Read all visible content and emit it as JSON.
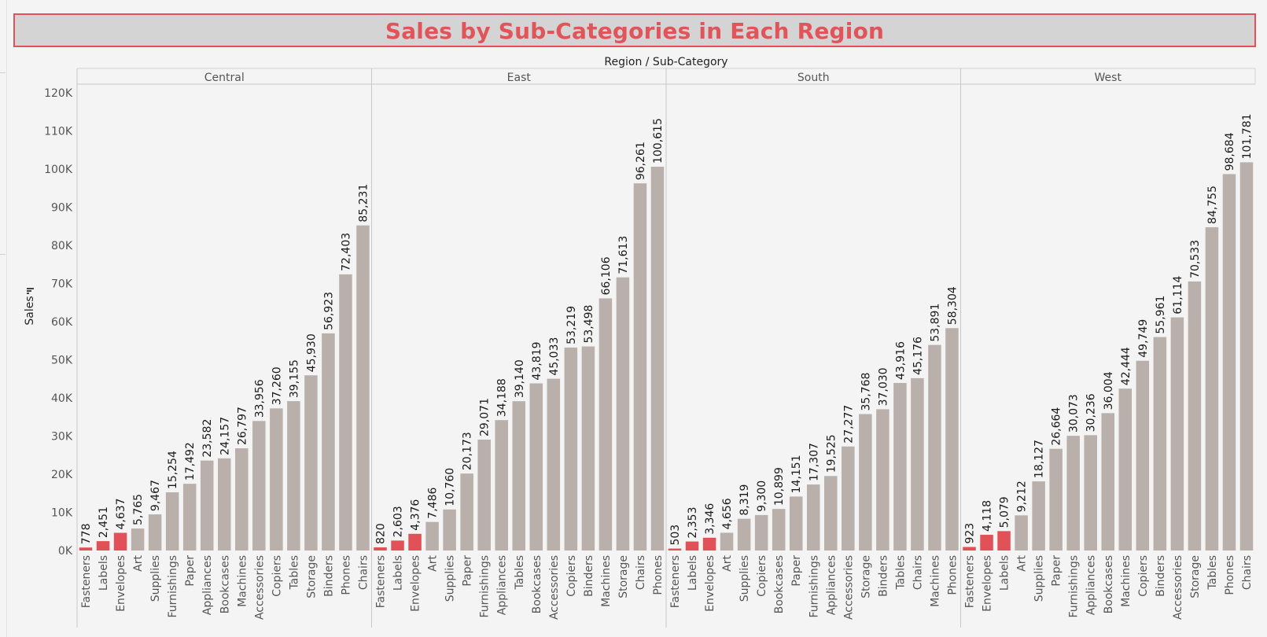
{
  "title": "Sales by Sub-Categories in Each Region",
  "colors": {
    "title": "#e0545a",
    "title_border": "#e05257",
    "title_bg": "#d4d4d4",
    "bar": "#bab0ab",
    "highlight": "#e05257",
    "background": "#f4f4f4"
  },
  "chart_data": {
    "type": "bar",
    "column_header": "Region / Sub-Category",
    "ylabel": "Sales",
    "ylabel_sort_icon": "sort-descending-icon",
    "ylim": [
      0,
      120000
    ],
    "y_ticks": [
      "0K",
      "10K",
      "20K",
      "30K",
      "40K",
      "50K",
      "60K",
      "70K",
      "80K",
      "90K",
      "100K",
      "110K",
      "120K"
    ],
    "grid": false,
    "highlight_rule": "bottom three sub-categories per region",
    "regions": [
      {
        "name": "Central",
        "categories": [
          "Fasteners",
          "Labels",
          "Envelopes",
          "Art",
          "Supplies",
          "Furnishings",
          "Paper",
          "Appliances",
          "Bookcases",
          "Machines",
          "Accessories",
          "Copiers",
          "Tables",
          "Storage",
          "Binders",
          "Phones",
          "Chairs"
        ],
        "values": [
          778,
          2451,
          4637,
          5765,
          9467,
          15254,
          17492,
          23582,
          24157,
          26797,
          33956,
          37260,
          39155,
          45930,
          56923,
          72403,
          85231
        ],
        "labels": [
          "778",
          "2,451",
          "4,637",
          "5,765",
          "9,467",
          "15,254",
          "17,492",
          "23,582",
          "24,157",
          "26,797",
          "33,956",
          "37,260",
          "39,155",
          "45,930",
          "56,923",
          "72,403",
          "85,231"
        ],
        "highlighted": [
          true,
          true,
          true,
          false,
          false,
          false,
          false,
          false,
          false,
          false,
          false,
          false,
          false,
          false,
          false,
          false,
          false
        ]
      },
      {
        "name": "East",
        "categories": [
          "Fasteners",
          "Labels",
          "Envelopes",
          "Art",
          "Supplies",
          "Paper",
          "Furnishings",
          "Appliances",
          "Tables",
          "Bookcases",
          "Accessories",
          "Copiers",
          "Binders",
          "Machines",
          "Storage",
          "Chairs",
          "Phones"
        ],
        "values": [
          820,
          2603,
          4376,
          7486,
          10760,
          20173,
          29071,
          34188,
          39140,
          43819,
          45033,
          53219,
          53498,
          66106,
          71613,
          96261,
          100615
        ],
        "labels": [
          "820",
          "2,603",
          "4,376",
          "7,486",
          "10,760",
          "20,173",
          "29,071",
          "34,188",
          "39,140",
          "43,819",
          "45,033",
          "53,219",
          "53,498",
          "66,106",
          "71,613",
          "96,261",
          "100,615"
        ],
        "highlighted": [
          true,
          true,
          true,
          false,
          false,
          false,
          false,
          false,
          false,
          false,
          false,
          false,
          false,
          false,
          false,
          false,
          false
        ]
      },
      {
        "name": "South",
        "categories": [
          "Fasteners",
          "Labels",
          "Envelopes",
          "Art",
          "Supplies",
          "Copiers",
          "Bookcases",
          "Paper",
          "Furnishings",
          "Appliances",
          "Accessories",
          "Storage",
          "Binders",
          "Tables",
          "Chairs",
          "Machines",
          "Phones"
        ],
        "values": [
          503,
          2353,
          3346,
          4656,
          8319,
          9300,
          10899,
          14151,
          17307,
          19525,
          27277,
          35768,
          37030,
          43916,
          45176,
          53891,
          58304
        ],
        "labels": [
          "503",
          "2,353",
          "3,346",
          "4,656",
          "8,319",
          "9,300",
          "10,899",
          "14,151",
          "17,307",
          "19,525",
          "27,277",
          "35,768",
          "37,030",
          "43,916",
          "45,176",
          "53,891",
          "58,304"
        ],
        "highlighted": [
          true,
          true,
          true,
          false,
          false,
          false,
          false,
          false,
          false,
          false,
          false,
          false,
          false,
          false,
          false,
          false,
          false
        ]
      },
      {
        "name": "West",
        "categories": [
          "Fasteners",
          "Envelopes",
          "Labels",
          "Art",
          "Supplies",
          "Paper",
          "Furnishings",
          "Appliances",
          "Bookcases",
          "Machines",
          "Copiers",
          "Binders",
          "Accessories",
          "Storage",
          "Tables",
          "Phones",
          "Chairs"
        ],
        "values": [
          923,
          4118,
          5079,
          9212,
          18127,
          26664,
          30073,
          30236,
          36004,
          42444,
          49749,
          55961,
          61114,
          70533,
          84755,
          98684,
          101781
        ],
        "labels": [
          "923",
          "4,118",
          "5,079",
          "9,212",
          "18,127",
          "26,664",
          "30,073",
          "30,236",
          "36,004",
          "42,444",
          "49,749",
          "55,961",
          "61,114",
          "70,533",
          "84,755",
          "98,684",
          "101,781"
        ],
        "highlighted": [
          true,
          true,
          true,
          false,
          false,
          false,
          false,
          false,
          false,
          false,
          false,
          false,
          false,
          false,
          false,
          false,
          false
        ]
      }
    ]
  }
}
